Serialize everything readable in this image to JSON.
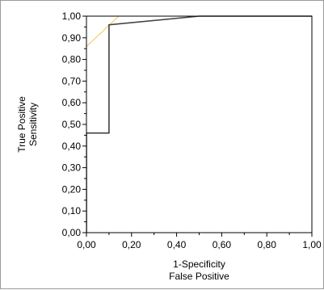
{
  "chart_data": {
    "type": "line",
    "xlabel_lines": [
      "1-Specificity",
      "False Positive"
    ],
    "ylabel_lines": [
      "True Positive",
      "Sensitivity"
    ],
    "xlim": [
      0,
      1
    ],
    "ylim": [
      0,
      1
    ],
    "x_ticks": [
      "0,00",
      "0,20",
      "0,40",
      "0,60",
      "0,80",
      "1,00"
    ],
    "y_ticks": [
      "0,00",
      "0,10",
      "0,20",
      "0,30",
      "0,40",
      "0,50",
      "0,60",
      "0,70",
      "0,80",
      "0,90",
      "1,00"
    ],
    "grid": false,
    "series": [
      {
        "color": "#404040",
        "x": [
          0.0,
          0.0,
          0.1,
          0.1,
          0.5,
          1.0
        ],
        "y": [
          0.0,
          0.46,
          0.46,
          0.96,
          1.0,
          1.0
        ]
      },
      {
        "color": "#f0d060",
        "x": [
          0.0,
          0.143
        ],
        "y": [
          0.86,
          1.0
        ]
      }
    ]
  }
}
